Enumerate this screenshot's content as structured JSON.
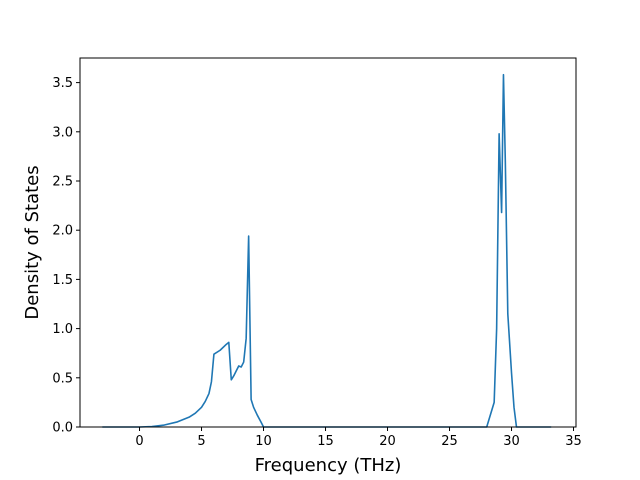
{
  "chart_data": {
    "type": "line",
    "title": "",
    "xlabel": "Frequency (THz)",
    "ylabel": "Density of States",
    "xlim": [
      -4.8,
      35.2
    ],
    "ylim": [
      0,
      3.75
    ],
    "xticks": [
      0,
      5,
      10,
      15,
      20,
      25,
      30,
      35
    ],
    "yticks": [
      0.0,
      0.5,
      1.0,
      1.5,
      2.0,
      2.5,
      3.0,
      3.5
    ],
    "xtick_labels": [
      "0",
      "5",
      "10",
      "15",
      "20",
      "25",
      "30",
      "35"
    ],
    "ytick_labels": [
      "0.0",
      "0.5",
      "1.0",
      "1.5",
      "2.0",
      "2.5",
      "3.0",
      "3.5"
    ],
    "grid": false,
    "legend": "none",
    "series": [
      {
        "color": "#1f77b4",
        "x": [
          -3.0,
          -1.0,
          0.0,
          1.0,
          2.0,
          3.0,
          4.0,
          4.5,
          5.0,
          5.3,
          5.6,
          5.8,
          6.0,
          6.5,
          7.0,
          7.2,
          7.4,
          7.6,
          7.8,
          8.0,
          8.2,
          8.4,
          8.6,
          8.8,
          9.0,
          9.2,
          9.5,
          9.8,
          10.0,
          10.2,
          11.0,
          20.0,
          28.0,
          28.6,
          28.8,
          29.0,
          29.2,
          29.35,
          29.5,
          29.7,
          30.0,
          30.2,
          30.4,
          31.0,
          33.2
        ],
        "y": [
          0.0,
          0.0,
          0.0,
          0.005,
          0.02,
          0.05,
          0.1,
          0.14,
          0.2,
          0.26,
          0.34,
          0.46,
          0.74,
          0.78,
          0.84,
          0.86,
          0.48,
          0.52,
          0.57,
          0.62,
          0.61,
          0.66,
          0.9,
          1.94,
          0.28,
          0.2,
          0.12,
          0.05,
          0.0,
          0.0,
          0.0,
          0.0,
          0.0,
          0.25,
          1.0,
          2.98,
          2.18,
          3.58,
          2.7,
          1.15,
          0.55,
          0.2,
          0.0,
          0.0,
          0.0
        ]
      }
    ]
  }
}
